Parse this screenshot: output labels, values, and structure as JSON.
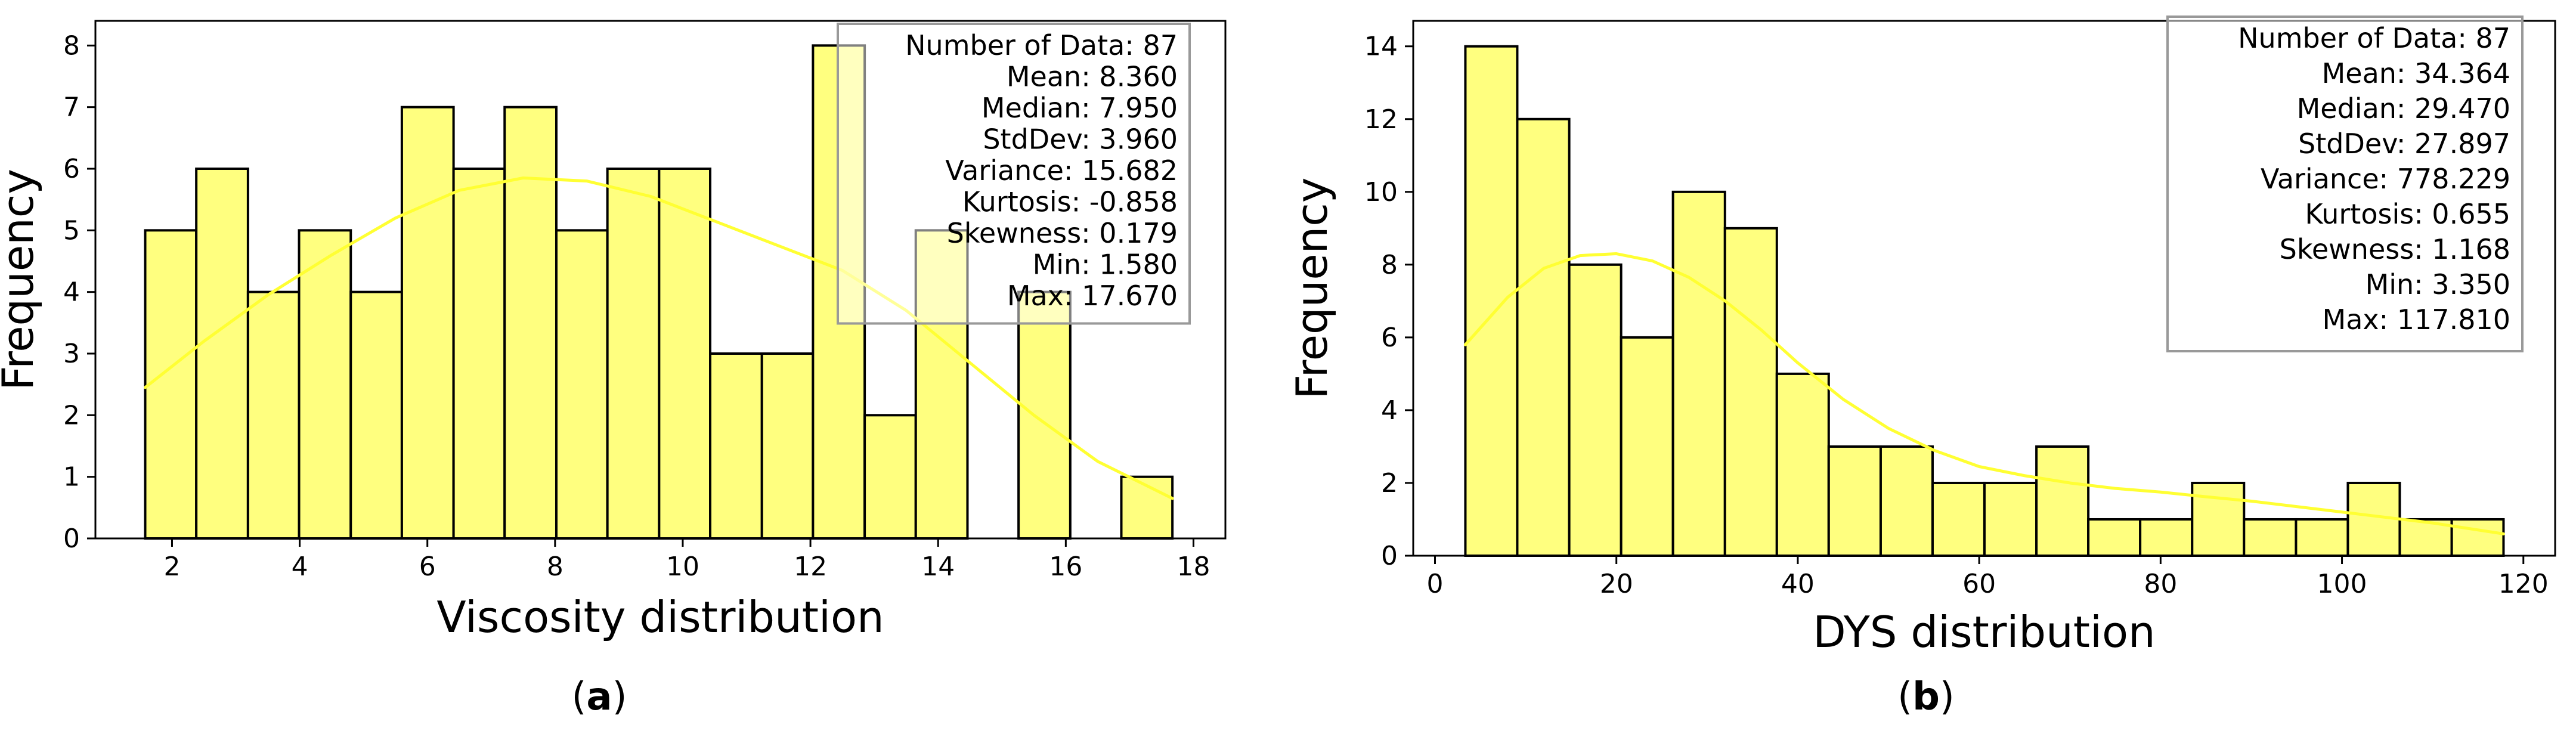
{
  "style": {
    "bar_fill": "#FFFF7F",
    "bar_stroke": "#000000",
    "kde_color": "#FFFF33",
    "stats_box_border": "#999999"
  },
  "chart_data": [
    {
      "type": "bar",
      "subtype": "histogram",
      "caption_letter": "a",
      "xlabel": "Viscosity distribution",
      "ylabel": "Frequency",
      "xlim": [
        0.8,
        18.5
      ],
      "ylim": [
        0,
        8.4
      ],
      "xticks": [
        2,
        4,
        6,
        8,
        10,
        12,
        14,
        16,
        18
      ],
      "yticks": [
        0,
        1,
        2,
        3,
        4,
        5,
        6,
        7,
        8
      ],
      "bins": [
        {
          "x0": 1.58,
          "x1": 2.38,
          "count": 5
        },
        {
          "x0": 2.38,
          "x1": 3.19,
          "count": 6
        },
        {
          "x0": 3.19,
          "x1": 3.99,
          "count": 4
        },
        {
          "x0": 3.99,
          "x1": 4.8,
          "count": 5
        },
        {
          "x0": 4.8,
          "x1": 5.6,
          "count": 4
        },
        {
          "x0": 5.6,
          "x1": 6.41,
          "count": 7
        },
        {
          "x0": 6.41,
          "x1": 7.21,
          "count": 6
        },
        {
          "x0": 7.21,
          "x1": 8.02,
          "count": 7
        },
        {
          "x0": 8.02,
          "x1": 8.82,
          "count": 5
        },
        {
          "x0": 8.82,
          "x1": 9.63,
          "count": 6
        },
        {
          "x0": 9.63,
          "x1": 10.43,
          "count": 6
        },
        {
          "x0": 10.43,
          "x1": 11.24,
          "count": 3
        },
        {
          "x0": 11.24,
          "x1": 12.04,
          "count": 3
        },
        {
          "x0": 12.04,
          "x1": 12.85,
          "count": 8
        },
        {
          "x0": 12.85,
          "x1": 13.65,
          "count": 2
        },
        {
          "x0": 13.65,
          "x1": 14.46,
          "count": 5
        },
        {
          "x0": 14.46,
          "x1": 15.26,
          "count": 0
        },
        {
          "x0": 15.26,
          "x1": 16.07,
          "count": 4
        },
        {
          "x0": 16.07,
          "x1": 16.87,
          "count": 0
        },
        {
          "x0": 16.87,
          "x1": 17.67,
          "count": 1
        }
      ],
      "kde": {
        "x": [
          1.58,
          2.5,
          3.5,
          4.5,
          5.5,
          6.5,
          7.5,
          8.5,
          9.5,
          10.5,
          11.5,
          12.5,
          13.5,
          14.5,
          15.5,
          16.5,
          17.67
        ],
        "y": [
          2.45,
          3.2,
          3.95,
          4.6,
          5.2,
          5.65,
          5.85,
          5.8,
          5.55,
          5.15,
          4.75,
          4.35,
          3.7,
          2.85,
          2.0,
          1.25,
          0.65
        ]
      },
      "stats": [
        "Number of Data: 87",
        "Mean: 8.360",
        "Median: 7.950",
        "StdDev: 3.960",
        "Variance: 15.682",
        "Kurtosis: -0.858",
        "Skewness: 0.179",
        "Min: 1.580",
        "Max: 17.670"
      ]
    },
    {
      "type": "bar",
      "subtype": "histogram",
      "caption_letter": "b",
      "xlabel": "DYS distribution",
      "ylabel": "Frequency",
      "xlim": [
        -2.4,
        123.5
      ],
      "ylim": [
        0,
        14.7
      ],
      "xticks": [
        0,
        20,
        40,
        60,
        80,
        100,
        120
      ],
      "yticks": [
        0,
        2,
        4,
        6,
        8,
        10,
        12,
        14
      ],
      "bins": [
        {
          "x0": 3.35,
          "x1": 9.07,
          "count": 14
        },
        {
          "x0": 9.07,
          "x1": 14.8,
          "count": 12
        },
        {
          "x0": 14.8,
          "x1": 20.52,
          "count": 8
        },
        {
          "x0": 20.52,
          "x1": 26.24,
          "count": 6
        },
        {
          "x0": 26.24,
          "x1": 31.97,
          "count": 10
        },
        {
          "x0": 31.97,
          "x1": 37.69,
          "count": 9
        },
        {
          "x0": 37.69,
          "x1": 43.41,
          "count": 5
        },
        {
          "x0": 43.41,
          "x1": 49.14,
          "count": 3
        },
        {
          "x0": 49.14,
          "x1": 54.86,
          "count": 3
        },
        {
          "x0": 54.86,
          "x1": 60.58,
          "count": 2
        },
        {
          "x0": 60.58,
          "x1": 66.31,
          "count": 2
        },
        {
          "x0": 66.31,
          "x1": 72.03,
          "count": 3
        },
        {
          "x0": 72.03,
          "x1": 77.75,
          "count": 1
        },
        {
          "x0": 77.75,
          "x1": 83.48,
          "count": 1
        },
        {
          "x0": 83.48,
          "x1": 89.2,
          "count": 2
        },
        {
          "x0": 89.2,
          "x1": 94.93,
          "count": 1
        },
        {
          "x0": 94.93,
          "x1": 100.65,
          "count": 1
        },
        {
          "x0": 100.65,
          "x1": 106.37,
          "count": 2
        },
        {
          "x0": 106.37,
          "x1": 112.1,
          "count": 1
        },
        {
          "x0": 112.1,
          "x1": 117.81,
          "count": 1
        }
      ],
      "kde": {
        "x": [
          3.35,
          8,
          12,
          16,
          20,
          24,
          28,
          32,
          36,
          40,
          45,
          50,
          55,
          60,
          65,
          70,
          75,
          80,
          85,
          90,
          95,
          100,
          105,
          110,
          117.81
        ],
        "y": [
          5.8,
          7.1,
          7.9,
          8.25,
          8.3,
          8.1,
          7.65,
          7.0,
          6.2,
          5.3,
          4.3,
          3.5,
          2.9,
          2.45,
          2.2,
          2.0,
          1.85,
          1.75,
          1.62,
          1.5,
          1.35,
          1.2,
          1.05,
          0.9,
          0.6
        ]
      },
      "stats": [
        "Number of Data: 87",
        "Mean: 34.364",
        "Median: 29.470",
        "StdDev: 27.897",
        "Variance: 778.229",
        "Kurtosis: 0.655",
        "Skewness: 1.168",
        "Min: 3.350",
        "Max: 117.810"
      ]
    }
  ]
}
